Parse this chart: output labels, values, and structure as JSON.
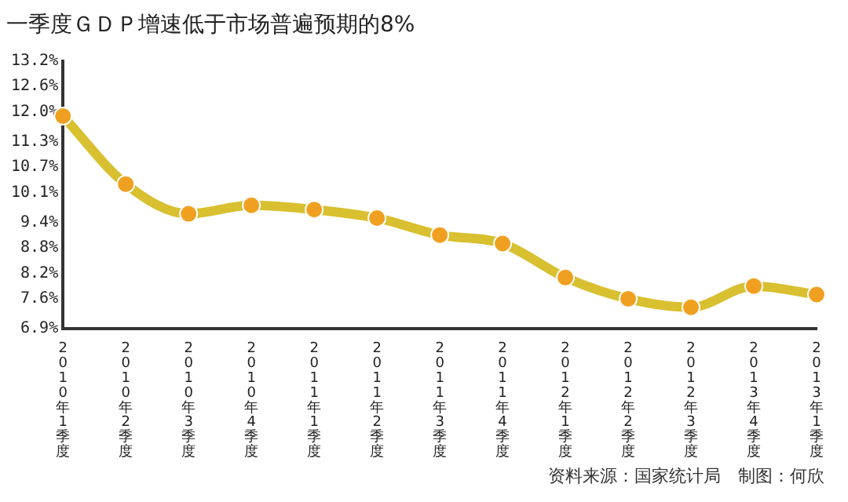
{
  "chart_data": {
    "type": "line",
    "title": "一季度ＧＤＰ增速低于市场普遍预期的8%",
    "categories": [
      "2010年1季度",
      "2010年2季度",
      "2010年3季度",
      "2010年4季度",
      "2011年1季度",
      "2011年2季度",
      "2011年3季度",
      "2011年4季度",
      "2012年1季度",
      "2012年2季度",
      "2012年3季度",
      "2013年4季度",
      "2013年1季度"
    ],
    "series": [
      {
        "color": "#d8c030",
        "colors": [
          "#f0a020",
          "#f0a020",
          "#f0a020",
          "#f0a020",
          "#f0a020",
          "#f0a020",
          "#f0a020",
          "#f0a020",
          "#f0a020",
          "#f0a020",
          "#f0a020",
          "#f0a020",
          "#f0a020"
        ],
        "values": [
          11.9,
          10.3,
          9.6,
          9.8,
          9.7,
          9.5,
          9.1,
          8.9,
          8.1,
          7.6,
          7.4,
          7.9,
          7.7
        ]
      }
    ],
    "marker": "circle",
    "ylim": [
      6.9,
      13.2
    ],
    "yticks": [
      {
        "value": 6.9,
        "label": "6.9%"
      },
      {
        "value": 7.6,
        "label": "7.6%"
      },
      {
        "value": 8.2,
        "label": "8.2%"
      },
      {
        "value": 8.8,
        "label": "8.8%"
      },
      {
        "value": 9.4,
        "label": "9.4%"
      },
      {
        "value": 10.1,
        "label": "10.1%"
      },
      {
        "value": 10.7,
        "label": "10.7%"
      },
      {
        "value": 11.3,
        "label": "11.3%"
      },
      {
        "value": 12.0,
        "label": "12.0%"
      },
      {
        "value": 12.6,
        "label": "12.6%"
      },
      {
        "value": 13.2,
        "label": "13.2%"
      }
    ],
    "grid": false,
    "legend": false,
    "annotations": [
      "资料来源：国家统计局　制图：何欣"
    ]
  }
}
